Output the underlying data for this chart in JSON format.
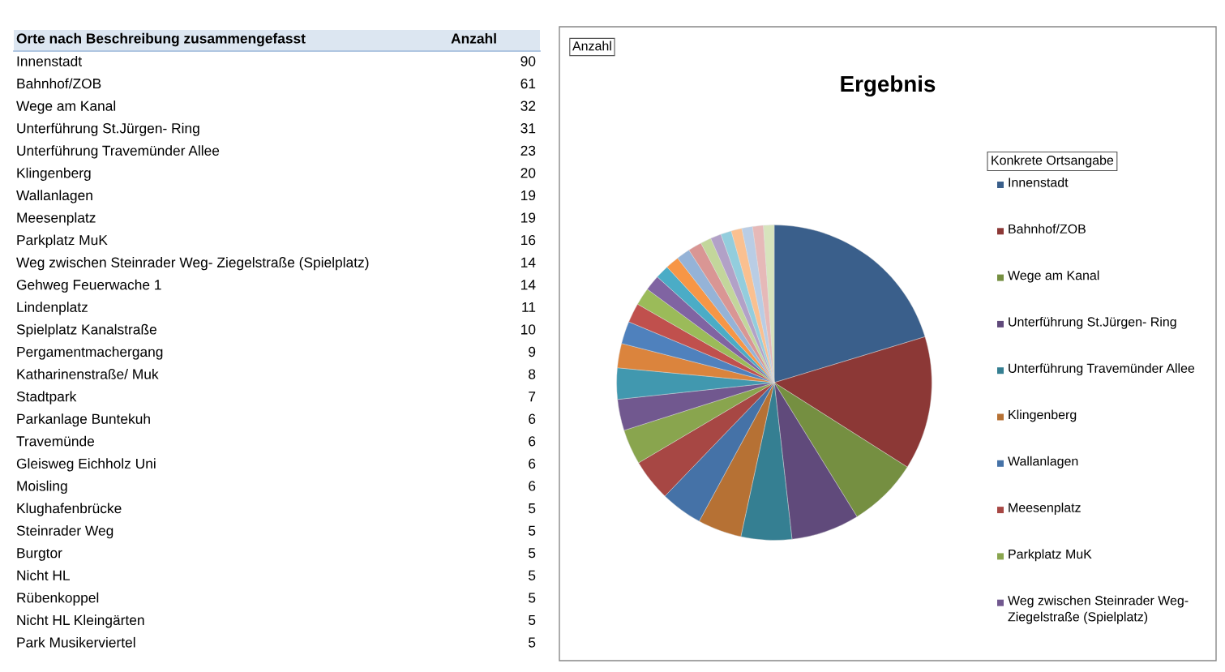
{
  "chart_data": [
    {
      "type": "other",
      "data_labels": true,
      "annotations": [
        "Orte nach Beschreibung zusammengefasst",
        "Anzahl"
      ],
      "categories": [
        "Innenstadt",
        "Bahnhof/ZOB",
        "Wege am Kanal",
        "Unterführung St.Jürgen- Ring",
        "Unterführung Travemünder Allee",
        "Klingenberg",
        "Wallanlagen",
        "Meesenplatz",
        "Parkplatz MuK",
        "Weg zwischen Steinrader Weg- Ziegelstraße (Spielplatz)",
        "Gehweg Feuerwache 1",
        "Lindenplatz",
        "Spielplatz Kanalstraße",
        "Pergamentmachergang",
        "Katharinenstraße/ Muk",
        "Stadtpark",
        "Parkanlage Buntekuh",
        "Travemünde",
        "Gleisweg Eichholz Uni",
        "Moisling",
        "Klughafenbrücke",
        "Steinrader Weg",
        "Burgtor",
        "Nicht HL",
        "Rübenkoppel",
        "Nicht HL Kleingärten",
        "Park Musikerviertel"
      ],
      "values": [
        90,
        61,
        32,
        31,
        23,
        20,
        19,
        19,
        16,
        14,
        14,
        11,
        10,
        9,
        8,
        7,
        6,
        6,
        6,
        6,
        5,
        5,
        5,
        5,
        5,
        5,
        5
      ]
    },
    {
      "type": "pie",
      "title": "Ergebnis",
      "legend_title": "Konkrete Ortsangabe",
      "legend": "right",
      "annotations": [
        "Anzahl"
      ],
      "categories": [
        "Innenstadt",
        "Bahnhof/ZOB",
        "Wege am Kanal",
        "Unterführung St.Jürgen- Ring",
        "Unterführung Travemünder Allee",
        "Klingenberg",
        "Wallanlagen",
        "Meesenplatz",
        "Parkplatz MuK",
        "Weg zwischen Steinrader Weg- Ziegelstraße (Spielplatz)",
        null,
        null,
        null,
        null,
        null,
        null,
        null,
        null,
        null,
        null,
        null,
        null,
        null,
        null,
        null,
        null,
        null
      ],
      "values": [
        20.3,
        13.7,
        7.2,
        7.0,
        5.2,
        4.5,
        4.3,
        4.3,
        3.6,
        3.2,
        3.2,
        2.5,
        2.3,
        2.0,
        1.8,
        1.6,
        1.4,
        1.4,
        1.4,
        1.4,
        1.1,
        1.1,
        1.1,
        1.1,
        1.1,
        1.1,
        1.1
      ],
      "colors": [
        "#3a5f8b",
        "#8c3836",
        "#758f41",
        "#604a7b",
        "#357f92",
        "#b67134",
        "#4572a7",
        "#a74744",
        "#89a54e",
        "#71588f",
        "#4198af",
        "#db843d",
        "#4f81bd",
        "#c0504d",
        "#9bbb59",
        "#8064a2",
        "#4bacc6",
        "#f79646",
        "#95b3d7",
        "#d99694",
        "#c3d69b",
        "#b2a1c7",
        "#93cddd",
        "#fac090",
        "#b9cde5",
        "#e6b9b8",
        "#d7e4bd"
      ]
    }
  ]
}
